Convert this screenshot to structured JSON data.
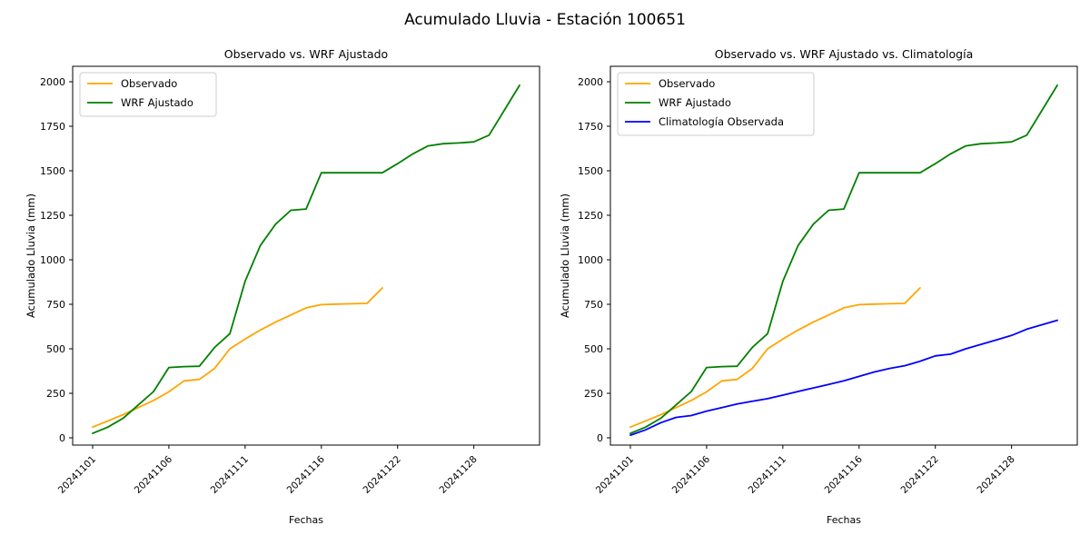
{
  "figure": {
    "title": "Acumulado Lluvia - Estación 100651",
    "background": "#ffffff"
  },
  "colors": {
    "observado": "#FFA500",
    "wrf_ajustado": "#008000",
    "climatologia": "#0000FF",
    "axis": "#000000",
    "legend_border": "#cccccc",
    "legend_background": "#ffffff"
  },
  "chart_data": [
    {
      "type": "line",
      "title": "Observado vs. WRF Ajustado",
      "xlabel": "Fechas",
      "ylabel": "Acumulado Lluvia (mm)",
      "ylim": [
        0,
        2000
      ],
      "yticks": [
        0,
        250,
        500,
        750,
        1000,
        1250,
        1500,
        1750,
        2000
      ],
      "grid": false,
      "legend_position": "upper-left",
      "categories": [
        "20241101",
        "20241102",
        "20241103",
        "20241104",
        "20241105",
        "20241106",
        "20241107",
        "20241108",
        "20241109",
        "20241110",
        "20241111",
        "20241112",
        "20241113",
        "20241114",
        "20241115",
        "20241116",
        "20241117",
        "20241118",
        "20241119",
        "20241120",
        "20241122",
        "20241123",
        "20241124",
        "20241125",
        "20241126",
        "20241128",
        "20241129",
        "20241130",
        "20241201"
      ],
      "xtick_indices": [
        0,
        5,
        10,
        15,
        20,
        25
      ],
      "xtick_labels": [
        "20241101",
        "20241106",
        "20241111",
        "20241116",
        "20241122",
        "20241128"
      ],
      "series": [
        {
          "name": "Observado",
          "color_key": "observado",
          "values": [
            60,
            95,
            130,
            170,
            210,
            258,
            320,
            328,
            390,
            500,
            555,
            605,
            650,
            690,
            730,
            748,
            751,
            753,
            755,
            842
          ]
        },
        {
          "name": "WRF Ajustado",
          "color_key": "wrf_ajustado",
          "values": [
            25,
            60,
            110,
            185,
            260,
            395,
            400,
            402,
            508,
            585,
            880,
            1080,
            1200,
            1278,
            1285,
            1489,
            1489,
            1489,
            1489,
            1489,
            1540,
            1595,
            1640,
            1652,
            1656,
            1662,
            1700,
            1840,
            1980
          ]
        }
      ]
    },
    {
      "type": "line",
      "title": "Observado vs. WRF Ajustado vs. Climatología",
      "xlabel": "Fechas",
      "ylabel": "Acumulado Lluvia (mm)",
      "ylim": [
        0,
        2000
      ],
      "yticks": [
        0,
        250,
        500,
        750,
        1000,
        1250,
        1500,
        1750,
        2000
      ],
      "grid": false,
      "legend_position": "upper-left",
      "categories": [
        "20241101",
        "20241102",
        "20241103",
        "20241104",
        "20241105",
        "20241106",
        "20241107",
        "20241108",
        "20241109",
        "20241110",
        "20241111",
        "20241112",
        "20241113",
        "20241114",
        "20241115",
        "20241116",
        "20241117",
        "20241118",
        "20241119",
        "20241120",
        "20241122",
        "20241123",
        "20241124",
        "20241125",
        "20241126",
        "20241128",
        "20241129",
        "20241130",
        "20241201"
      ],
      "xtick_indices": [
        0,
        5,
        10,
        15,
        20,
        25
      ],
      "xtick_labels": [
        "20241101",
        "20241106",
        "20241111",
        "20241116",
        "20241122",
        "20241128"
      ],
      "series": [
        {
          "name": "Observado",
          "color_key": "observado",
          "values": [
            60,
            95,
            130,
            170,
            210,
            258,
            320,
            328,
            390,
            500,
            555,
            605,
            650,
            690,
            730,
            748,
            751,
            753,
            755,
            842
          ]
        },
        {
          "name": "WRF Ajustado",
          "color_key": "wrf_ajustado",
          "values": [
            25,
            60,
            110,
            185,
            260,
            395,
            400,
            402,
            508,
            585,
            880,
            1080,
            1200,
            1278,
            1285,
            1489,
            1489,
            1489,
            1489,
            1489,
            1540,
            1595,
            1640,
            1652,
            1656,
            1662,
            1700,
            1840,
            1980
          ]
        },
        {
          "name": "Climatología Observada",
          "color_key": "climatologia",
          "values": [
            15,
            45,
            85,
            115,
            125,
            150,
            170,
            190,
            205,
            220,
            240,
            260,
            280,
            300,
            320,
            345,
            370,
            390,
            405,
            430,
            460,
            470,
            500,
            525,
            550,
            575,
            610,
            635,
            660
          ]
        }
      ]
    }
  ]
}
